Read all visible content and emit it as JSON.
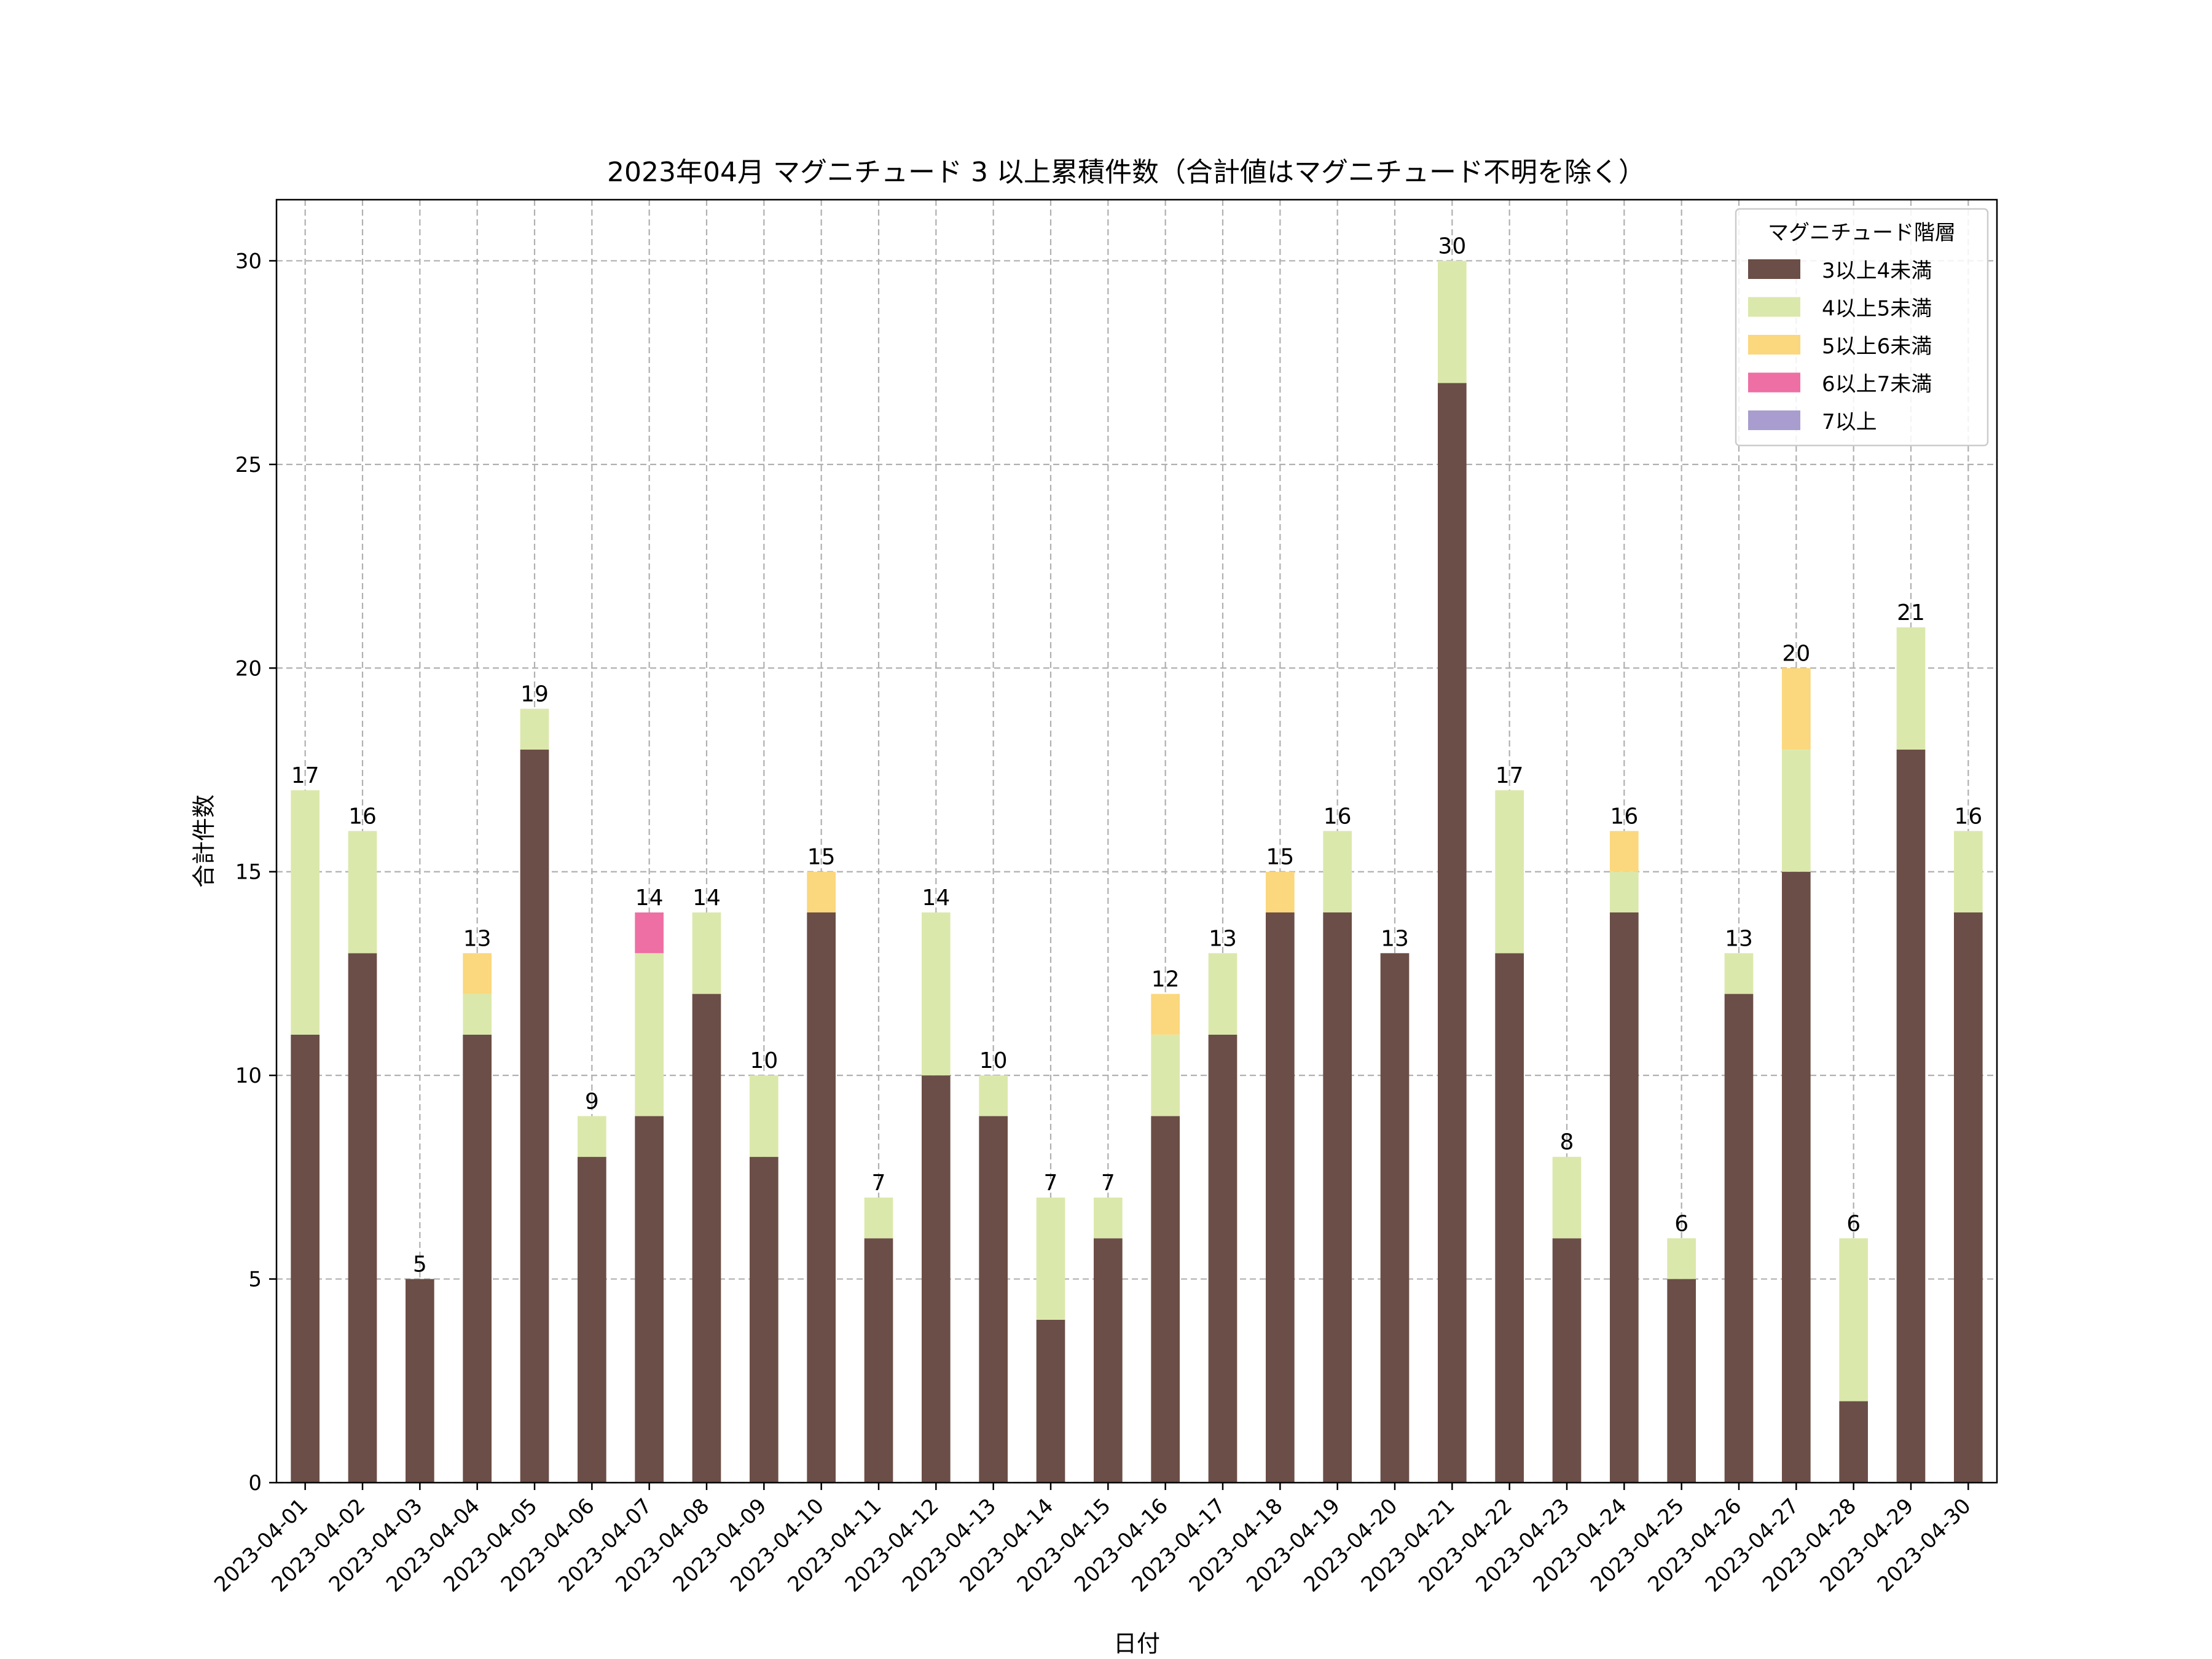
{
  "chart_data": {
    "type": "bar",
    "stacked": true,
    "title": "2023年04月 マグニチュード 3 以上累積件数（合計値はマグニチュード不明を除く）",
    "xlabel": "日付",
    "ylabel": "合計件数",
    "ylim": [
      0,
      31.5
    ],
    "yticks": [
      0,
      5,
      10,
      15,
      20,
      25,
      30
    ],
    "grid": true,
    "legend_title": "マグニチュード階層",
    "legend_position": "top-right",
    "categories": [
      "2023-04-01",
      "2023-04-02",
      "2023-04-03",
      "2023-04-04",
      "2023-04-05",
      "2023-04-06",
      "2023-04-07",
      "2023-04-08",
      "2023-04-09",
      "2023-04-10",
      "2023-04-11",
      "2023-04-12",
      "2023-04-13",
      "2023-04-14",
      "2023-04-15",
      "2023-04-16",
      "2023-04-17",
      "2023-04-18",
      "2023-04-19",
      "2023-04-20",
      "2023-04-21",
      "2023-04-22",
      "2023-04-23",
      "2023-04-24",
      "2023-04-25",
      "2023-04-26",
      "2023-04-27",
      "2023-04-28",
      "2023-04-29",
      "2023-04-30"
    ],
    "series": [
      {
        "name": "3以上4未満",
        "color": "#6b4e47",
        "values": [
          11,
          13,
          5,
          11,
          18,
          8,
          9,
          12,
          8,
          14,
          6,
          10,
          9,
          4,
          6,
          9,
          11,
          14,
          14,
          13,
          27,
          13,
          6,
          14,
          5,
          12,
          15,
          2,
          18,
          14
        ]
      },
      {
        "name": "4以上5未満",
        "color": "#dbe8ab",
        "values": [
          6,
          3,
          0,
          1,
          1,
          1,
          4,
          2,
          2,
          0,
          1,
          4,
          1,
          3,
          1,
          2,
          2,
          0,
          2,
          0,
          3,
          4,
          2,
          1,
          1,
          1,
          3,
          4,
          3,
          2
        ]
      },
      {
        "name": "5以上6未満",
        "color": "#fbd77d",
        "values": [
          0,
          0,
          0,
          1,
          0,
          0,
          0,
          0,
          0,
          1,
          0,
          0,
          0,
          0,
          0,
          1,
          0,
          1,
          0,
          0,
          0,
          0,
          0,
          1,
          0,
          0,
          2,
          0,
          0,
          0
        ]
      },
      {
        "name": "6以上7未満",
        "color": "#ee6fa4",
        "values": [
          0,
          0,
          0,
          0,
          0,
          0,
          1,
          0,
          0,
          0,
          0,
          0,
          0,
          0,
          0,
          0,
          0,
          0,
          0,
          0,
          0,
          0,
          0,
          0,
          0,
          0,
          0,
          0,
          0,
          0
        ]
      },
      {
        "name": "7以上",
        "color": "#a89dce",
        "values": [
          0,
          0,
          0,
          0,
          0,
          0,
          0,
          0,
          0,
          0,
          0,
          0,
          0,
          0,
          0,
          0,
          0,
          0,
          0,
          0,
          0,
          0,
          0,
          0,
          0,
          0,
          0,
          0,
          0,
          0
        ]
      }
    ],
    "totals": [
      17,
      16,
      5,
      13,
      19,
      9,
      14,
      14,
      10,
      15,
      7,
      14,
      10,
      7,
      7,
      12,
      13,
      15,
      16,
      13,
      30,
      17,
      8,
      16,
      6,
      13,
      20,
      6,
      21,
      16
    ]
  }
}
